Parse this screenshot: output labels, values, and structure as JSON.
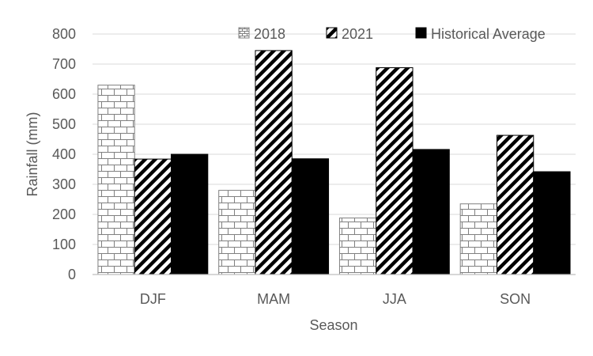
{
  "chart_data": {
    "type": "bar",
    "title": "",
    "xlabel": "Season",
    "ylabel": "Rainfall (mm)",
    "ylim": [
      0,
      800
    ],
    "yticks": [
      0,
      100,
      200,
      300,
      400,
      500,
      600,
      700,
      800
    ],
    "ytick_labels": [
      "0",
      "100",
      "200",
      "300",
      "400",
      "500",
      "600",
      "700",
      "800"
    ],
    "categories": [
      "DJF",
      "MAM",
      "JJA",
      "SON"
    ],
    "series": [
      {
        "name": "2018",
        "values": [
          630,
          280,
          188,
          235
        ],
        "pattern": "brick",
        "color": "#808080"
      },
      {
        "name": "2021",
        "values": [
          384,
          745,
          688,
          463
        ],
        "pattern": "diagonal-stripes",
        "color": "#000000"
      },
      {
        "name": "Historical Average",
        "values": [
          400,
          385,
          416,
          342
        ],
        "pattern": "solid",
        "color": "#000000"
      }
    ],
    "grid": true,
    "legend_position": "top-right"
  }
}
